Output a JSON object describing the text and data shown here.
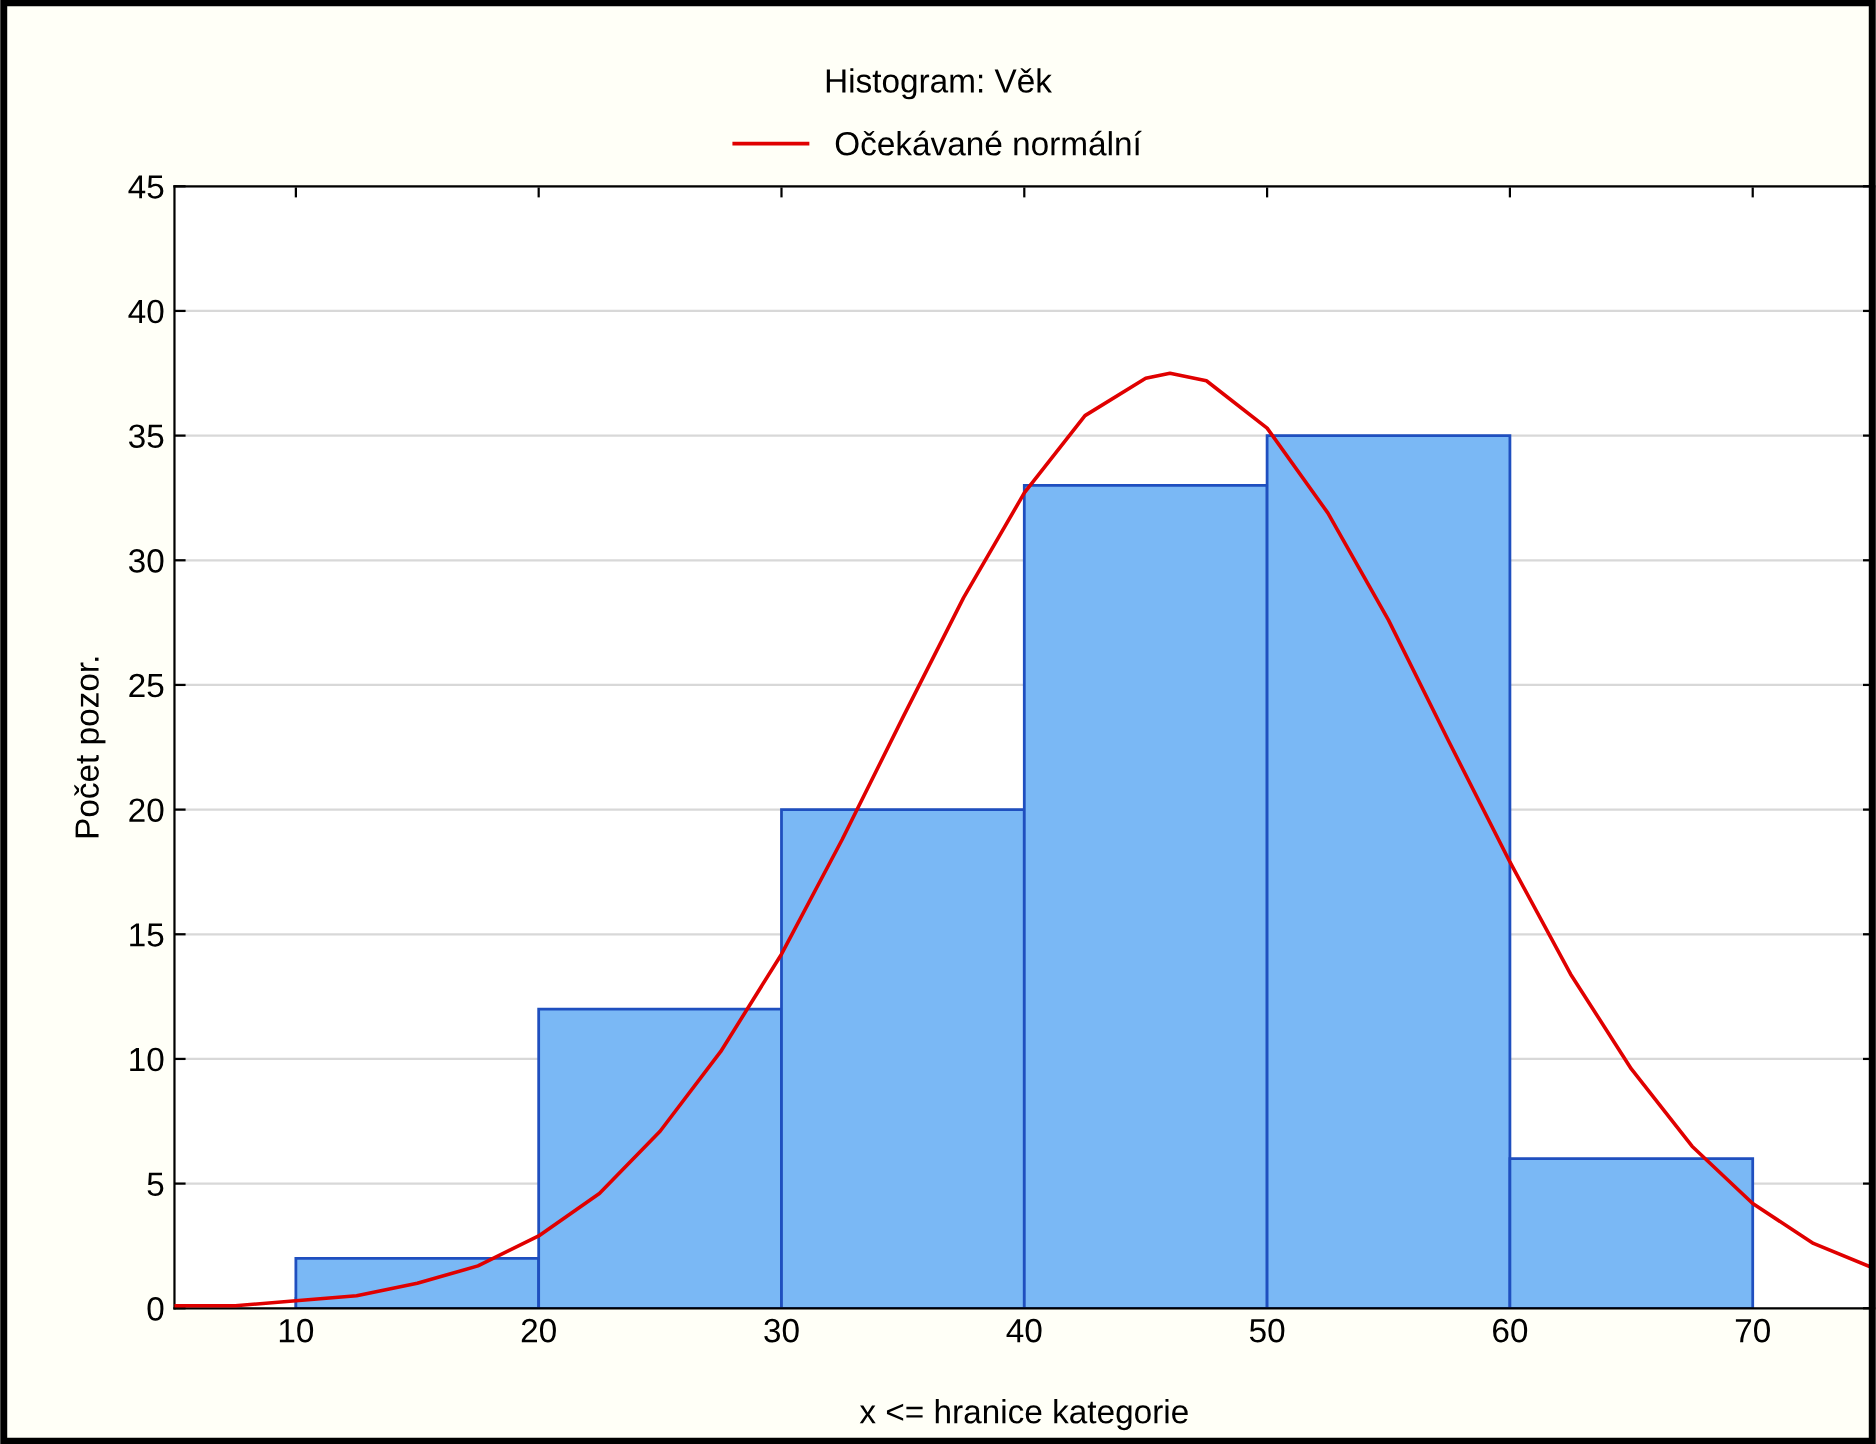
{
  "chart_data": {
    "type": "histogram",
    "title": "Histogram: Věk",
    "xlabel": "x <= hranice kategorie",
    "ylabel": "Počet pozor.",
    "bins": [
      10,
      20,
      30,
      40,
      50,
      60,
      70
    ],
    "values": [
      2,
      12,
      20,
      33,
      35,
      6
    ],
    "color": "#7ab8f5",
    "series": [
      {
        "name": "Očekávané normální",
        "type": "line",
        "color": "#e00000",
        "x": [
          5,
          7.5,
          10,
          12.5,
          15,
          17.5,
          20,
          22.5,
          25,
          27.5,
          30,
          32.5,
          35,
          37.5,
          40,
          42.5,
          45,
          46,
          47.5,
          50,
          52.5,
          55,
          57.5,
          60,
          62.5,
          65,
          67.5,
          70,
          72.5,
          75
        ],
        "values": [
          0.1,
          0.1,
          0.3,
          0.5,
          1.0,
          1.7,
          2.9,
          4.6,
          7.1,
          10.3,
          14.2,
          18.8,
          23.7,
          28.5,
          32.7,
          35.8,
          37.3,
          37.5,
          37.2,
          35.3,
          31.9,
          27.6,
          22.7,
          17.9,
          13.4,
          9.6,
          6.5,
          4.2,
          2.6,
          1.6
        ]
      }
    ],
    "xlim": [
      5,
      75
    ],
    "xticks": [
      10,
      20,
      30,
      40,
      50,
      60,
      70
    ],
    "ylim": [
      0,
      45
    ],
    "yticks": [
      0,
      5,
      10,
      15,
      20,
      25,
      30,
      35,
      40,
      45
    ],
    "grid": "y",
    "legend": "top"
  }
}
